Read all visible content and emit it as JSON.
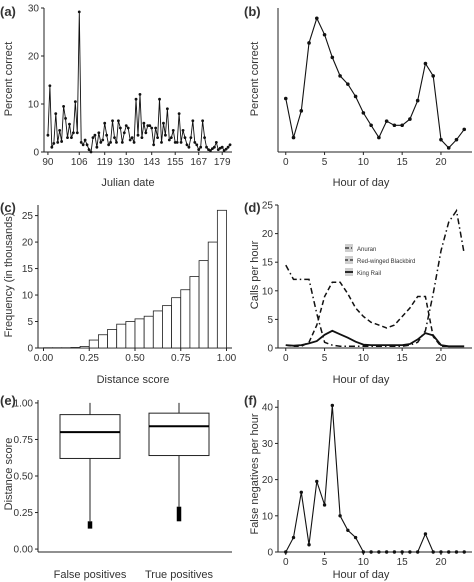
{
  "chart_data": [
    {
      "panel": "(a)",
      "type": "line",
      "xlabel": "Julian date",
      "ylabel": "Percent correct",
      "xlim": [
        88,
        184
      ],
      "ylim": [
        0,
        30
      ],
      "xticks": [
        90,
        106,
        119,
        130,
        143,
        155,
        167,
        179
      ],
      "yticks": [
        0,
        10,
        20,
        30
      ],
      "x": [
        90,
        91,
        92,
        93,
        94,
        95,
        96,
        97,
        98,
        99,
        100,
        101,
        102,
        103,
        104,
        105,
        106,
        107,
        108,
        109,
        110,
        111,
        112,
        113,
        114,
        115,
        116,
        117,
        118,
        119,
        120,
        121,
        122,
        123,
        124,
        125,
        126,
        127,
        128,
        129,
        130,
        131,
        132,
        133,
        134,
        135,
        136,
        137,
        138,
        139,
        140,
        141,
        142,
        143,
        144,
        145,
        146,
        147,
        148,
        149,
        150,
        151,
        152,
        153,
        154,
        155,
        156,
        157,
        158,
        159,
        160,
        161,
        162,
        163,
        164,
        165,
        166,
        167,
        168,
        169,
        170,
        171,
        172,
        173,
        174,
        175,
        176,
        177,
        178,
        179,
        180,
        181,
        182,
        183
      ],
      "y": [
        3.5,
        13.8,
        1,
        1.8,
        8,
        2,
        4.5,
        2.2,
        9.5,
        7,
        3,
        5.8,
        3,
        4,
        10.5,
        4,
        29.2,
        2,
        1.5,
        2.5,
        1.5,
        0.5,
        0,
        3,
        3.5,
        1,
        4,
        2,
        2.5,
        6,
        3.5,
        1.5,
        2,
        6.5,
        3,
        2,
        6.5,
        5,
        2,
        4,
        5.5,
        5,
        2.5,
        3,
        2,
        11,
        3.5,
        12,
        3,
        6,
        4,
        5.5,
        5.5,
        5,
        1.5,
        5,
        3,
        11,
        2,
        6,
        3.5,
        9,
        2.5,
        3,
        4.5,
        2,
        2,
        8,
        2,
        4.5,
        3,
        1.5,
        1,
        3,
        6.5,
        2,
        1.5,
        0.5,
        1,
        6.5,
        3,
        1,
        0.5,
        0.3,
        0.7,
        1,
        2,
        0.5,
        0.8,
        1,
        0.3,
        0.6,
        1,
        1.5
      ]
    },
    {
      "panel": "(b)",
      "type": "line",
      "xlabel": "Hour of day",
      "ylabel": "Percent correct",
      "xlim": [
        -1,
        24
      ],
      "ylim": [
        0,
        7
      ],
      "xticks": [
        0,
        5,
        10,
        15,
        20
      ],
      "x": [
        0,
        1,
        2,
        3,
        4,
        5,
        6,
        7,
        8,
        9,
        10,
        11,
        12,
        13,
        14,
        15,
        16,
        17,
        18,
        19,
        20,
        21,
        22,
        23
      ],
      "y": [
        2.6,
        0.7,
        2.0,
        5.3,
        6.5,
        5.7,
        4.6,
        3.7,
        3.3,
        2.7,
        1.9,
        1.3,
        0.7,
        1.5,
        1.3,
        1.3,
        1.6,
        2.5,
        4.3,
        3.7,
        0.6,
        0.2,
        0.6,
        1.1
      ]
    },
    {
      "panel": "(c)",
      "type": "bar",
      "xlabel": "Distance score",
      "ylabel": "Frequency (in thousands)",
      "xlim": [
        -0.03,
        1.03
      ],
      "ylim": [
        0,
        27
      ],
      "xticks": [
        0.0,
        0.25,
        0.5,
        0.75,
        1.0
      ],
      "yticks": [
        0,
        5,
        10,
        15,
        20,
        25
      ],
      "bin_start": [
        0,
        0.05,
        0.1,
        0.15,
        0.2,
        0.25,
        0.3,
        0.35,
        0.4,
        0.45,
        0.5,
        0.55,
        0.6,
        0.65,
        0.7,
        0.75,
        0.8,
        0.85,
        0.9,
        0.95
      ],
      "values": [
        0.05,
        0.05,
        0.05,
        0.1,
        0.3,
        1.5,
        2.5,
        3.5,
        4.5,
        5.0,
        5.5,
        6.0,
        7.0,
        8.0,
        9.5,
        11.0,
        13.5,
        16.5,
        20.0,
        26.0
      ]
    },
    {
      "panel": "(d)",
      "type": "line",
      "xlabel": "Hour of day",
      "ylabel": "Calls per hour",
      "xlim": [
        -1,
        24
      ],
      "ylim": [
        0,
        25
      ],
      "xticks": [
        0,
        5,
        10,
        15,
        20
      ],
      "yticks": [
        0,
        5,
        10,
        15,
        20,
        25
      ],
      "x": [
        0,
        1,
        2,
        3,
        4,
        5,
        6,
        7,
        8,
        9,
        10,
        11,
        12,
        13,
        14,
        15,
        16,
        17,
        18,
        19,
        20,
        21,
        22,
        23
      ],
      "series": [
        {
          "name": "Anuran",
          "dash": "dashdot",
          "values": [
            14.5,
            12,
            12,
            12,
            6,
            1,
            0.5,
            0.3,
            0.3,
            0.3,
            0.3,
            0.3,
            0.3,
            0.3,
            0.3,
            0.3,
            0.5,
            1,
            3,
            9.5,
            17,
            22,
            24,
            16.5
          ]
        },
        {
          "name": "Red-winged Blackbird",
          "dash": "dash",
          "values": [
            0.5,
            0.3,
            0.3,
            1,
            4,
            9,
            11.5,
            11.5,
            9.5,
            7,
            5.5,
            4.5,
            4,
            3.5,
            4,
            5.5,
            7,
            9,
            9,
            2,
            0.3,
            0.3,
            0.3,
            0.3
          ]
        },
        {
          "name": "King Rail",
          "dash": "solid",
          "values": [
            0.5,
            0.4,
            0.5,
            0.8,
            1.2,
            2.3,
            3.0,
            2.4,
            1.8,
            1.1,
            0.6,
            0.5,
            0.5,
            0.5,
            0.5,
            0.5,
            0.7,
            1.5,
            2.6,
            2.2,
            0.5,
            0.3,
            0.3,
            0.3
          ]
        }
      ]
    },
    {
      "panel": "(e)",
      "type": "box",
      "xlabel": "",
      "ylabel": "Distance score",
      "ylim": [
        -0.02,
        1.02
      ],
      "yticks": [
        0.0,
        0.25,
        0.5,
        0.75,
        1.0
      ],
      "categories": [
        "False positives",
        "True positives"
      ],
      "boxes": [
        {
          "whisker_low": 0.19,
          "q1": 0.62,
          "median": 0.8,
          "q3": 0.92,
          "whisker_high": 1.0,
          "outliers_low": 0.14,
          "outliers_high": 0.19
        },
        {
          "whisker_low": 0.29,
          "q1": 0.64,
          "median": 0.84,
          "q3": 0.93,
          "whisker_high": 1.0,
          "outliers_low": 0.19,
          "outliers_high": 0.29
        }
      ]
    },
    {
      "panel": "(f)",
      "type": "line",
      "xlabel": "Hour of day",
      "ylabel": "False negatives per hour",
      "xlim": [
        -1,
        24
      ],
      "ylim": [
        0,
        42
      ],
      "xticks": [
        0,
        5,
        10,
        15,
        20
      ],
      "yticks": [
        0,
        10,
        20,
        30,
        40
      ],
      "x": [
        0,
        1,
        2,
        3,
        4,
        5,
        6,
        7,
        8,
        9,
        10,
        11,
        12,
        13,
        14,
        15,
        16,
        17,
        18,
        19,
        20,
        21,
        22,
        23
      ],
      "y": [
        0,
        4,
        16.5,
        2,
        19.5,
        13,
        40.5,
        10,
        6,
        4,
        0,
        0,
        0,
        0,
        0,
        0,
        0,
        0,
        5,
        0,
        0,
        0,
        0,
        0
      ]
    }
  ]
}
